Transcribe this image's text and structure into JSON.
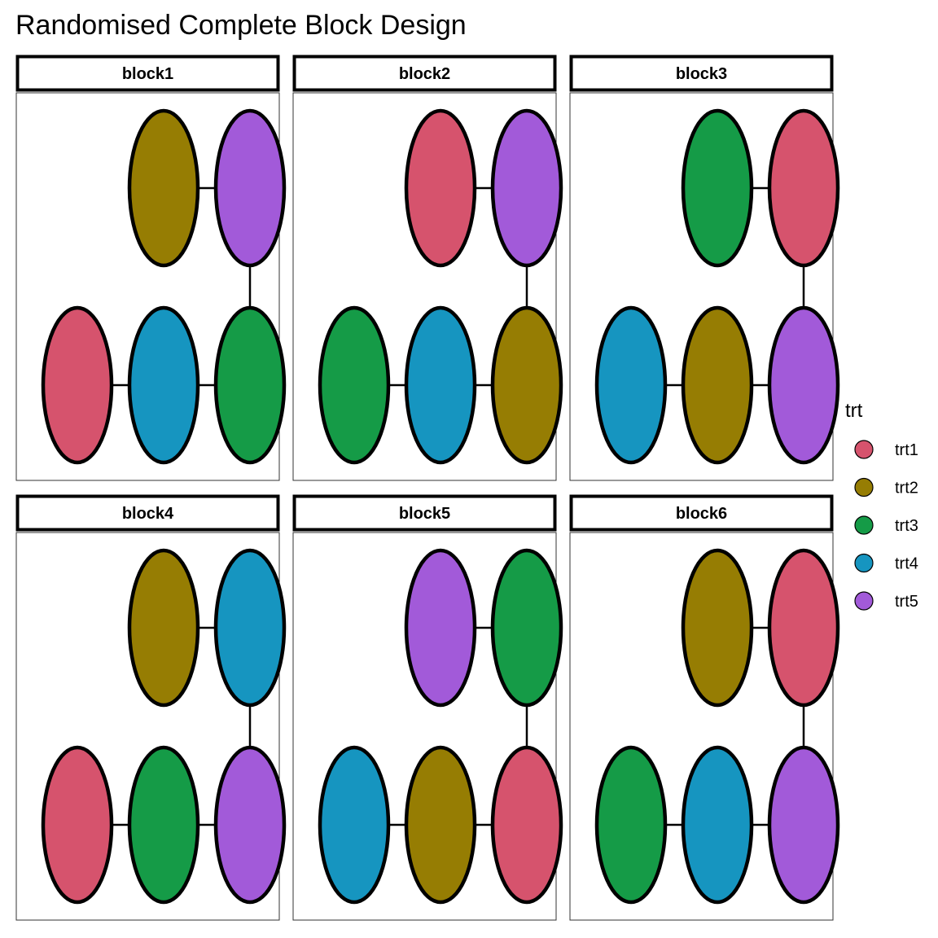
{
  "title": "Randomised Complete Block Design",
  "legend": {
    "title": "trt",
    "items": [
      {
        "label": "trt1",
        "color": "#d6536d"
      },
      {
        "label": "trt2",
        "color": "#967d03"
      },
      {
        "label": "trt3",
        "color": "#159b47"
      },
      {
        "label": "trt4",
        "color": "#1695c0"
      },
      {
        "label": "trt5",
        "color": "#a25ad9"
      }
    ]
  },
  "panels": [
    {
      "label": "block1",
      "top": [
        "trt2",
        "trt5"
      ],
      "bottom": [
        "trt1",
        "trt4",
        "trt3"
      ]
    },
    {
      "label": "block2",
      "top": [
        "trt1",
        "trt5"
      ],
      "bottom": [
        "trt3",
        "trt4",
        "trt2"
      ]
    },
    {
      "label": "block3",
      "top": [
        "trt3",
        "trt1"
      ],
      "bottom": [
        "trt4",
        "trt2",
        "trt5"
      ]
    },
    {
      "label": "block4",
      "top": [
        "trt2",
        "trt4"
      ],
      "bottom": [
        "trt1",
        "trt3",
        "trt5"
      ]
    },
    {
      "label": "block5",
      "top": [
        "trt5",
        "trt3"
      ],
      "bottom": [
        "trt4",
        "trt2",
        "trt1"
      ]
    },
    {
      "label": "block6",
      "top": [
        "trt2",
        "trt1"
      ],
      "bottom": [
        "trt3",
        "trt4",
        "trt5"
      ]
    }
  ]
}
